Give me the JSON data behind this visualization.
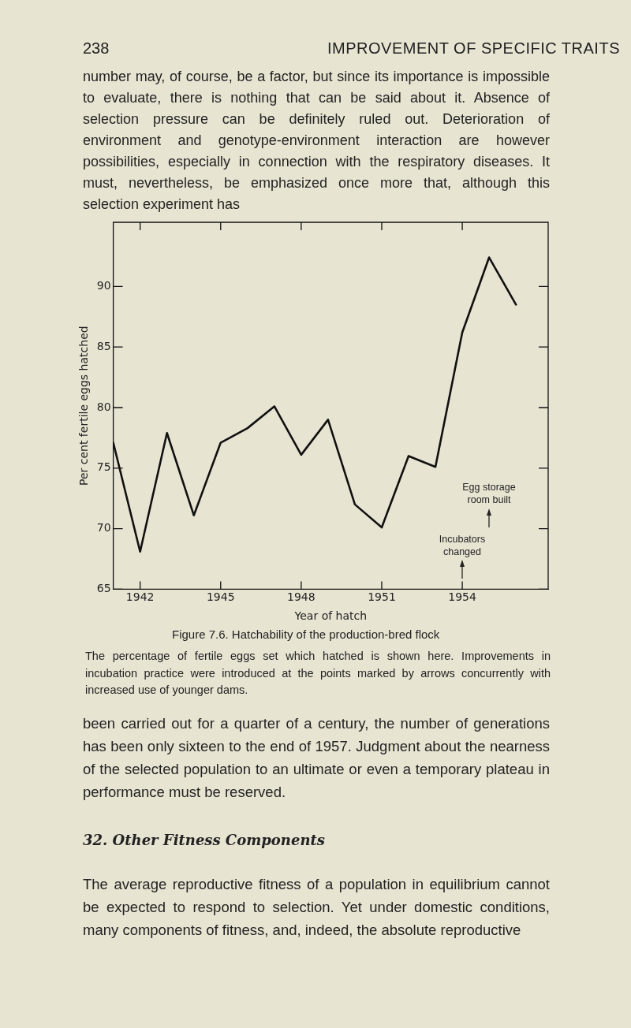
{
  "chart_data": {
    "type": "line",
    "title": "Figure 7.6. Hatchability of the production-bred flock",
    "xlabel": "Year of hatch",
    "ylabel": "Per cent fertile eggs hatched",
    "x": [
      1941,
      1942,
      1943,
      1944,
      1945,
      1946,
      1947,
      1948,
      1949,
      1950,
      1951,
      1952,
      1953,
      1954,
      1955,
      1956
    ],
    "series": [
      {
        "color": "#111111",
        "values": [
          77.1,
          68.1,
          77.9,
          71.1,
          77.1,
          78.3,
          80.1,
          76.1,
          79.0,
          72.0,
          70.1,
          76.0,
          75.1,
          86.2,
          92.4,
          88.5
        ]
      }
    ],
    "xlim": [
      1941,
      1957.2
    ],
    "xticks": [
      1942,
      1945,
      1948,
      1951,
      1954
    ],
    "ylim": [
      65,
      95.3
    ],
    "yticks": [
      65,
      70,
      75,
      80,
      85,
      90
    ],
    "grid": false,
    "legend": false,
    "marker": "none",
    "line_style": "solid",
    "annotations": [
      "238",
      "IMPROVEMENT OF SPECIFIC TRAITS",
      "number may, of course, be a factor, but since its importance is impossible to evaluate, there is nothing that can be said about it. Absence of selection pressure can be definitely ruled out. Deterioration of environment and genotype-environment interaction are however possibilities, especially in connection with the respiratory diseases. It must, nevertheless, be emphasized once more that, although this selection experiment has",
      "The percentage of fertile eggs set which hatched is shown here. Improvements in incubation practice were introduced at the points marked by arrows concurrently with increased use of younger dams.",
      "been carried out for a quarter of a century, the number of generations has been only sixteen to the end of 1957. Judgment about the nearness of the selected population to an ultimate or even a temporary plateau in performance must be reserved.",
      "32. Other Fitness Components",
      "The average reproductive fitness of a population in equilibrium cannot be expected to respond to selection. Yet under domestic conditions, many components of fitness, and, indeed, the absolute reproductive",
      "Egg storage room built",
      "Incubators changed"
    ]
  }
}
